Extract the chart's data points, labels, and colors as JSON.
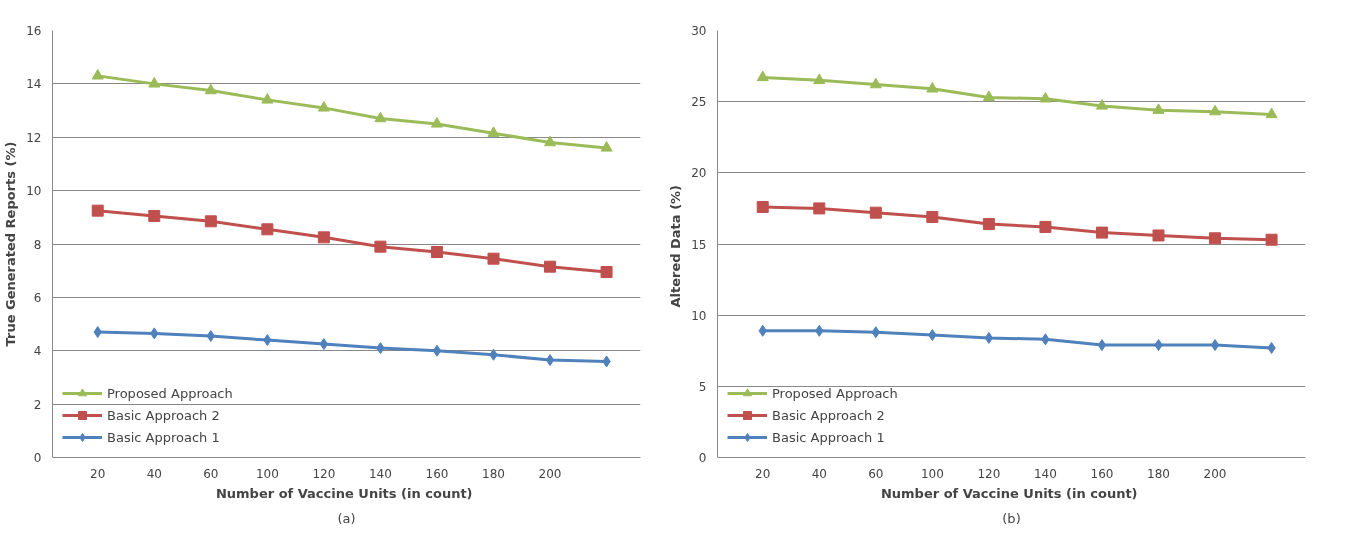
{
  "chart_data": [
    {
      "type": "line",
      "xlabel": "Number of Vaccine  Units (in count)",
      "ylabel": "True Generated Reports (%)",
      "categories": [
        "20",
        "40",
        "60",
        "100",
        "120",
        "140",
        "160",
        "180",
        "200",
        null
      ],
      "ylim": [
        0,
        16
      ],
      "yticks": [
        0,
        2,
        4,
        6,
        8,
        10,
        12,
        14,
        16
      ],
      "grid": "y",
      "legend": "bottom left",
      "annotations": [
        "(a)"
      ],
      "series": [
        {
          "name": "Proposed Approach",
          "color": "#9bbb59",
          "marker": "triangle",
          "values": [
            14.3,
            14.0,
            13.75,
            13.4,
            13.1,
            12.7,
            12.5,
            12.15,
            11.8,
            11.6
          ]
        },
        {
          "name": "Basic Approach 2",
          "color": "#c0504d",
          "marker": "square",
          "values": [
            9.25,
            9.05,
            8.85,
            8.55,
            8.25,
            7.9,
            7.7,
            7.45,
            7.15,
            6.95
          ]
        },
        {
          "name": "Basic Approach 1",
          "color": "#4f81bd",
          "marker": "diamond",
          "values": [
            4.7,
            4.65,
            4.55,
            4.4,
            4.25,
            4.1,
            4.0,
            3.85,
            3.65,
            3.6
          ]
        }
      ]
    },
    {
      "type": "line",
      "xlabel": "Number of Vaccine  Units (in count)",
      "ylabel": "Altered Data  (%)",
      "categories": [
        "20",
        "40",
        "60",
        "100",
        "120",
        "140",
        "160",
        "180",
        "200",
        null
      ],
      "ylim": [
        0,
        30
      ],
      "yticks": [
        0,
        5,
        10,
        15,
        20,
        25,
        30
      ],
      "grid": "y",
      "legend": "bottom left",
      "annotations": [
        "(b)"
      ],
      "series": [
        {
          "name": "Proposed Approach",
          "color": "#9bbb59",
          "marker": "triangle",
          "values": [
            26.7,
            26.5,
            26.2,
            25.9,
            25.3,
            25.2,
            24.7,
            24.4,
            24.3,
            24.1
          ]
        },
        {
          "name": "Basic Approach 2",
          "color": "#c0504d",
          "marker": "square",
          "values": [
            17.6,
            17.5,
            17.2,
            16.9,
            16.4,
            16.2,
            15.8,
            15.6,
            15.4,
            15.3
          ]
        },
        {
          "name": "Basic Approach 1",
          "color": "#4f81bd",
          "marker": "diamond",
          "values": [
            8.9,
            8.9,
            8.8,
            8.6,
            8.4,
            8.3,
            7.9,
            7.9,
            7.9,
            7.7
          ]
        }
      ]
    }
  ]
}
